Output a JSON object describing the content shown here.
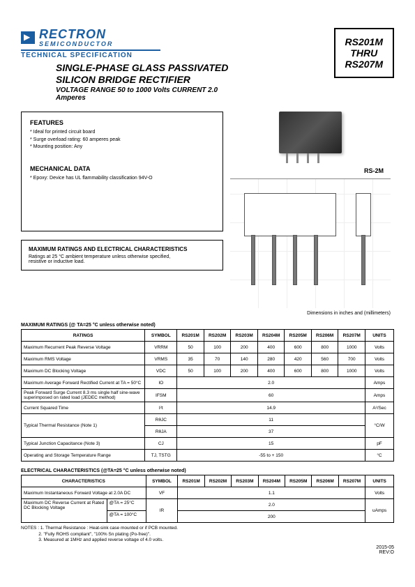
{
  "header": {
    "company": "RECTRON",
    "subhead": "SEMICONDUCTOR",
    "techspec": "TECHNICAL SPECIFICATION",
    "partbox_l1": "RS201M",
    "partbox_l2": "THRU",
    "partbox_l3": "RS207M",
    "title_l1": "SINGLE-PHASE GLASS PASSIVATED",
    "title_l2": "SILICON BRIDGE RECTIFIER",
    "subtitle": "VOLTAGE RANGE 50 to 1000 Volts  CURRENT 2.0 Amperes"
  },
  "features": {
    "heading": "FEATURES",
    "items": [
      "Ideal for printed circuit board",
      "Surge overload rating: 60 amperes peak",
      "Mounting position: Any"
    ]
  },
  "mechanical": {
    "heading": "MECHANICAL DATA",
    "line1": "Epoxy: Device has UL flammability classification 94V-O"
  },
  "ratings_box": {
    "heading": "MAXIMUM RATINGS AND ELECTRICAL CHARACTERISTICS",
    "line1": "Ratings at 25 °C ambient temperature unless otherwise specified,",
    "line2": "resistive or inductive load."
  },
  "package_label": "RS-2M",
  "dim_note": "Dimensions in inches and (millimeters)",
  "max_ratings": {
    "title": "MAXIMUM RATINGS (@ TA=25 °C unless otherwise noted)",
    "headers": [
      "RATINGS",
      "SYMBOL",
      "RS201M",
      "RS202M",
      "RS203M",
      "RS204M",
      "RS205M",
      "RS206M",
      "RS207M",
      "UNITS"
    ],
    "rows": [
      {
        "label": "Maximum Recurrent Peak Reverse Voltage",
        "sym": "VRRM",
        "vals": [
          "50",
          "100",
          "200",
          "400",
          "600",
          "800",
          "1000"
        ],
        "units": "Volts",
        "span": false
      },
      {
        "label": "Maximum RMS Voltage",
        "sym": "VRMS",
        "vals": [
          "35",
          "70",
          "140",
          "280",
          "420",
          "560",
          "700"
        ],
        "units": "Volts",
        "span": false
      },
      {
        "label": "Maximum DC Blocking Voltage",
        "sym": "VDC",
        "vals": [
          "50",
          "100",
          "200",
          "400",
          "600",
          "800",
          "1000"
        ],
        "units": "Volts",
        "span": false
      },
      {
        "label": "Maximum Average Forward Rectified Current at TA = 50°C",
        "sym": "IO",
        "vals": [
          "2.0"
        ],
        "units": "Amps",
        "span": true
      },
      {
        "label": "Peak Forward Surge Current 8.3 ms single half sine-wave superimposed on rated load (JEDEC method)",
        "sym": "IFSM",
        "vals": [
          "60"
        ],
        "units": "Amps",
        "span": true
      },
      {
        "label": "Current Squared Time",
        "sym": "I²t",
        "vals": [
          "14.9"
        ],
        "units": "A²/Sec",
        "span": true
      },
      {
        "label": "Typical Thermal Resistance (Note 1)",
        "sym": "RθJC",
        "vals": [
          "11"
        ],
        "units": "°C/W",
        "span": true,
        "double": true,
        "sym2": "RθJA",
        "vals2": [
          "37"
        ]
      },
      {
        "label": "Typical Junction Capacitance (Note 3)",
        "sym": "CJ",
        "vals": [
          "15"
        ],
        "units": "pF",
        "span": true
      },
      {
        "label": "Operating and Storage Temperature Range",
        "sym": "TJ, TSTG",
        "vals": [
          "-55 to + 150"
        ],
        "units": "°C",
        "span": true
      }
    ]
  },
  "elec_char": {
    "title": "ELECTRICAL CHARACTERISTICS (@TA=25 °C unless otherwise noted)",
    "headers": [
      "CHARACTERISTICS",
      "SYMBOL",
      "RS201M",
      "RS202M",
      "RS203M",
      "RS204M",
      "RS205M",
      "RS206M",
      "RS207M",
      "UNITS"
    ],
    "row1": {
      "label": "Maximum Instantaneous Forward Voltage at 2.0A DC",
      "sym": "VF",
      "val": "1.1",
      "units": "Volts"
    },
    "row2_label": "Maximum DC Reverse Current at Rated DC Blocking Voltage",
    "row2a_cond": "@TA = 25°C",
    "row2a_val": "2.0",
    "row2b_cond": "@TA = 100°C",
    "row2b_val": "200",
    "row2_sym": "IR",
    "row2_units": "uAmps"
  },
  "notes": {
    "prefix": "NOTES :",
    "n1": "1. Thermal Resistance : Heat-sink case mounted or if  PCB mounted.",
    "n2": "2. \"Fully ROHS compliant\", \"100% Sn plating (Po-free)\".",
    "n3": "3. Measured at 1MHz and applied reverse voltage of 4.0 volts."
  },
  "footer": {
    "date": "2015-05",
    "rev": "REV:O"
  }
}
